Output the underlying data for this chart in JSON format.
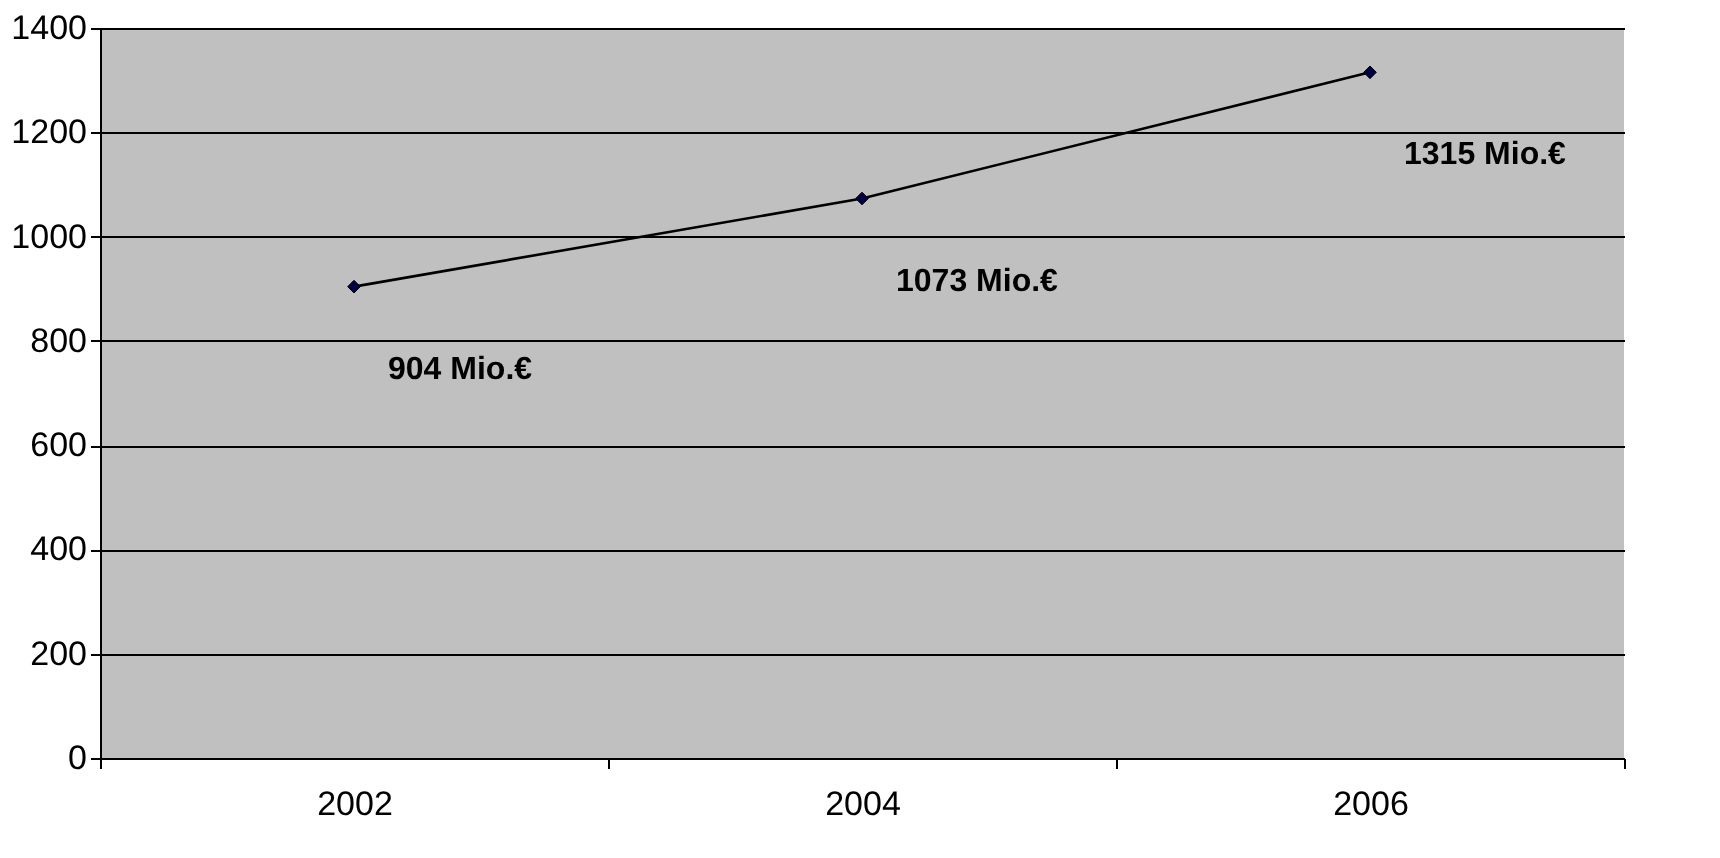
{
  "chart_data": {
    "type": "line",
    "categories": [
      "2002",
      "2004",
      "2006"
    ],
    "series": [
      {
        "color": "#000040",
        "values": [
          904,
          1073,
          1315
        ],
        "value_labels": [
          "904 Mio.€",
          "1073 Mio.€",
          "1315 Mio.€"
        ]
      }
    ],
    "ylim": [
      0,
      1400
    ],
    "yticks": [
      0,
      200,
      400,
      600,
      800,
      {
        "value": 1000,
        "label": "1000"
      },
      {
        "value": 1200,
        "label": "1200"
      },
      {
        "value": 1400,
        "label": "1400"
      }
    ],
    "grid": "y",
    "marker": "diamond"
  }
}
